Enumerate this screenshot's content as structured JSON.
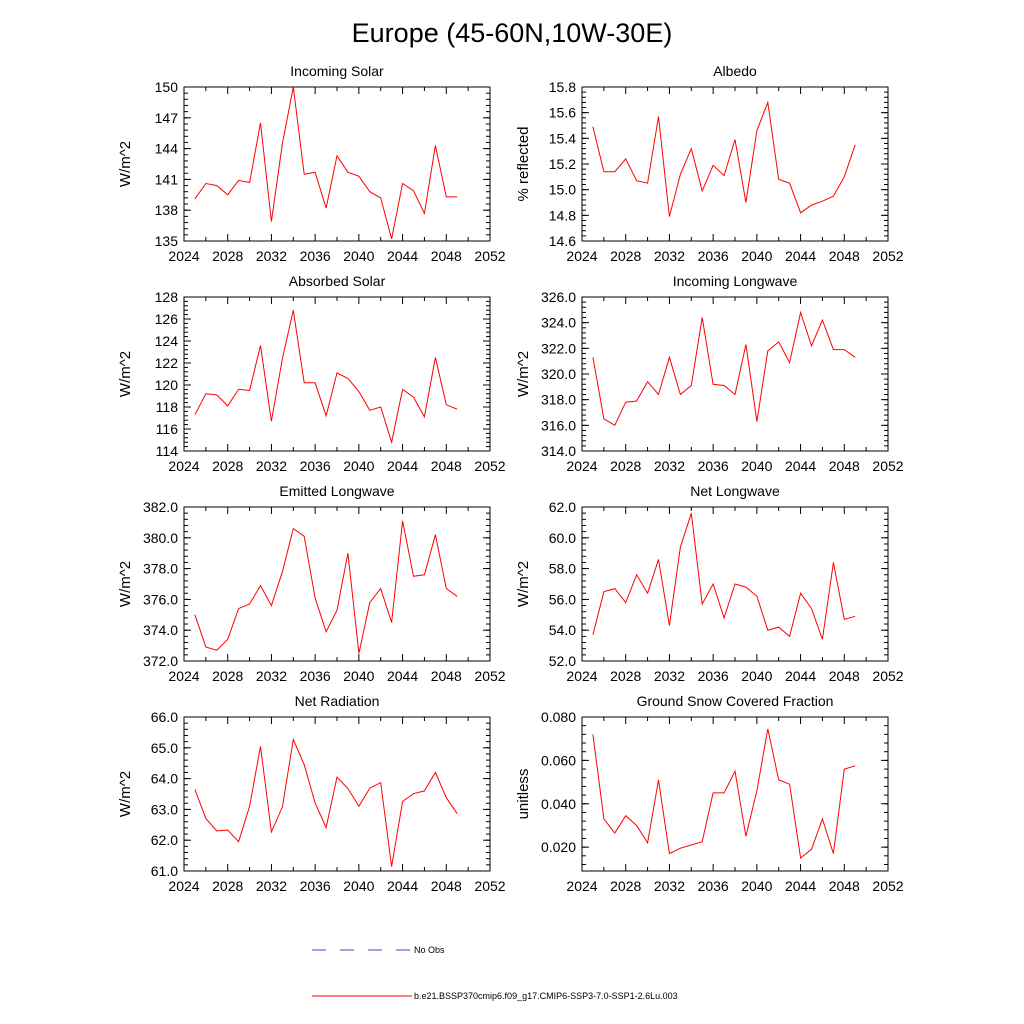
{
  "figure": {
    "title": "Europe (45-60N,10W-30E)",
    "legend": [
      {
        "label": "No Obs",
        "color": "#3b45d6",
        "style": "dashed"
      },
      {
        "label": "b.e21.BSSP370cmip6.f09_g17.CMIP6-SSP3-7.0-SSP1-2.6Lu.003",
        "color": "#ff0000",
        "style": "solid"
      }
    ]
  },
  "chart_data": [
    {
      "type": "line",
      "title": "Incoming Solar",
      "ylabel": "W/m^2",
      "xlim": [
        2024,
        2052
      ],
      "ylim": [
        135,
        150
      ],
      "xticks": [
        2024,
        2028,
        2032,
        2036,
        2040,
        2044,
        2048,
        2052
      ],
      "xtick_labels": [
        "2024",
        "2028",
        "2032",
        "2036",
        "2040",
        "2044",
        "2048",
        "2052"
      ],
      "yticks": [
        135,
        138,
        141,
        144,
        147,
        150
      ],
      "ytick_labels": [
        "135",
        "138",
        "141",
        "144",
        "147",
        "150"
      ],
      "x": [
        2025,
        2026,
        2027,
        2028,
        2029,
        2030,
        2031,
        2032,
        2033,
        2034,
        2035,
        2036,
        2037,
        2038,
        2039,
        2040,
        2041,
        2042,
        2043,
        2044,
        2045,
        2046,
        2047,
        2048,
        2049
      ],
      "values": [
        139.1,
        140.6,
        140.4,
        139.5,
        140.9,
        140.7,
        146.5,
        136.9,
        144.5,
        150.0,
        141.5,
        141.7,
        138.2,
        143.3,
        141.7,
        141.3,
        139.8,
        139.2,
        135.2,
        140.6,
        139.9,
        137.7,
        144.3,
        139.3,
        139.3
      ]
    },
    {
      "type": "line",
      "title": "Albedo",
      "ylabel": "% reflected",
      "xlim": [
        2024,
        2052
      ],
      "ylim": [
        14.6,
        15.8
      ],
      "xticks": [
        2024,
        2028,
        2032,
        2036,
        2040,
        2044,
        2048,
        2052
      ],
      "xtick_labels": [
        "2024",
        "2028",
        "2032",
        "2036",
        "2040",
        "2044",
        "2048",
        "2052"
      ],
      "yticks": [
        14.6,
        14.8,
        15.0,
        15.2,
        15.4,
        15.6,
        15.8
      ],
      "ytick_labels": [
        "14.6",
        "14.8",
        "15.0",
        "15.2",
        "15.4",
        "15.6",
        "15.8"
      ],
      "x": [
        2025,
        2026,
        2027,
        2028,
        2029,
        2030,
        2031,
        2032,
        2033,
        2034,
        2035,
        2036,
        2037,
        2038,
        2039,
        2040,
        2041,
        2042,
        2043,
        2044,
        2045,
        2046,
        2047,
        2048,
        2049
      ],
      "values": [
        15.49,
        15.14,
        15.14,
        15.24,
        15.07,
        15.05,
        15.57,
        14.79,
        15.12,
        15.32,
        14.99,
        15.19,
        15.11,
        15.39,
        14.9,
        15.46,
        15.68,
        15.08,
        15.05,
        14.82,
        14.88,
        14.91,
        14.95,
        15.1,
        15.35
      ]
    },
    {
      "type": "line",
      "title": "Absorbed Solar",
      "ylabel": "W/m^2",
      "xlim": [
        2024,
        2052
      ],
      "ylim": [
        114,
        128
      ],
      "xticks": [
        2024,
        2028,
        2032,
        2036,
        2040,
        2044,
        2048,
        2052
      ],
      "xtick_labels": [
        "2024",
        "2028",
        "2032",
        "2036",
        "2040",
        "2044",
        "2048",
        "2052"
      ],
      "yticks": [
        114,
        116,
        118,
        120,
        122,
        124,
        126,
        128
      ],
      "ytick_labels": [
        "114",
        "116",
        "118",
        "120",
        "122",
        "124",
        "126",
        "128"
      ],
      "x": [
        2025,
        2026,
        2027,
        2028,
        2029,
        2030,
        2031,
        2032,
        2033,
        2034,
        2035,
        2036,
        2037,
        2038,
        2039,
        2040,
        2041,
        2042,
        2043,
        2044,
        2045,
        2046,
        2047,
        2048,
        2049
      ],
      "values": [
        117.3,
        119.2,
        119.1,
        118.1,
        119.6,
        119.5,
        123.6,
        116.7,
        122.4,
        126.8,
        120.2,
        120.2,
        117.2,
        121.1,
        120.6,
        119.4,
        117.7,
        118.0,
        114.8,
        119.6,
        118.9,
        117.1,
        122.5,
        118.2,
        117.8
      ]
    },
    {
      "type": "line",
      "title": "Incoming Longwave",
      "ylabel": "W/m^2",
      "xlim": [
        2024,
        2052
      ],
      "ylim": [
        314,
        326
      ],
      "xticks": [
        2024,
        2028,
        2032,
        2036,
        2040,
        2044,
        2048,
        2052
      ],
      "xtick_labels": [
        "2024",
        "2028",
        "2032",
        "2036",
        "2040",
        "2044",
        "2048",
        "2052"
      ],
      "yticks": [
        314,
        316,
        318,
        320,
        322,
        324,
        326
      ],
      "ytick_labels": [
        "314.0",
        "316.0",
        "318.0",
        "320.0",
        "322.0",
        "324.0",
        "326.0"
      ],
      "x": [
        2025,
        2026,
        2027,
        2028,
        2029,
        2030,
        2031,
        2032,
        2033,
        2034,
        2035,
        2036,
        2037,
        2038,
        2039,
        2040,
        2041,
        2042,
        2043,
        2044,
        2045,
        2046,
        2047,
        2048,
        2049
      ],
      "values": [
        321.3,
        316.5,
        316.0,
        317.8,
        317.9,
        319.4,
        318.4,
        321.3,
        318.4,
        319.1,
        324.4,
        319.2,
        319.1,
        318.4,
        322.3,
        316.3,
        321.8,
        322.5,
        320.9,
        324.8,
        322.2,
        324.2,
        321.9,
        321.9,
        321.3
      ]
    },
    {
      "type": "line",
      "title": "Emitted Longwave",
      "ylabel": "W/m^2",
      "xlim": [
        2024,
        2052
      ],
      "ylim": [
        372,
        382
      ],
      "xticks": [
        2024,
        2028,
        2032,
        2036,
        2040,
        2044,
        2048,
        2052
      ],
      "xtick_labels": [
        "2024",
        "2028",
        "2032",
        "2036",
        "2040",
        "2044",
        "2048",
        "2052"
      ],
      "yticks": [
        372,
        374,
        376,
        378,
        380,
        382
      ],
      "ytick_labels": [
        "372.0",
        "374.0",
        "376.0",
        "378.0",
        "380.0",
        "382.0"
      ],
      "x": [
        2025,
        2026,
        2027,
        2028,
        2029,
        2030,
        2031,
        2032,
        2033,
        2034,
        2035,
        2036,
        2037,
        2038,
        2039,
        2040,
        2041,
        2042,
        2043,
        2044,
        2045,
        2046,
        2047,
        2048,
        2049
      ],
      "values": [
        375.0,
        372.9,
        372.7,
        373.4,
        375.4,
        375.7,
        376.9,
        375.6,
        377.8,
        380.6,
        380.1,
        376.1,
        373.9,
        375.3,
        379.0,
        372.5,
        375.8,
        376.7,
        374.5,
        381.1,
        377.5,
        377.6,
        380.2,
        376.7,
        376.2
      ]
    },
    {
      "type": "line",
      "title": "Net Longwave",
      "ylabel": "W/m^2",
      "xlim": [
        2024,
        2052
      ],
      "ylim": [
        52,
        62
      ],
      "xticks": [
        2024,
        2028,
        2032,
        2036,
        2040,
        2044,
        2048,
        2052
      ],
      "xtick_labels": [
        "2024",
        "2028",
        "2032",
        "2036",
        "2040",
        "2044",
        "2048",
        "2052"
      ],
      "yticks": [
        52,
        54,
        56,
        58,
        60,
        62
      ],
      "ytick_labels": [
        "52.0",
        "54.0",
        "56.0",
        "58.0",
        "60.0",
        "62.0"
      ],
      "x": [
        2025,
        2026,
        2027,
        2028,
        2029,
        2030,
        2031,
        2032,
        2033,
        2034,
        2035,
        2036,
        2037,
        2038,
        2039,
        2040,
        2041,
        2042,
        2043,
        2044,
        2045,
        2046,
        2047,
        2048,
        2049
      ],
      "values": [
        53.7,
        56.5,
        56.7,
        55.8,
        57.6,
        56.4,
        58.6,
        54.3,
        59.4,
        61.6,
        55.7,
        57.0,
        54.8,
        57.0,
        56.8,
        56.2,
        54.0,
        54.2,
        53.6,
        56.4,
        55.4,
        53.4,
        58.4,
        54.7,
        54.9
      ]
    },
    {
      "type": "line",
      "title": "Net Radiation",
      "ylabel": "W/m^2",
      "xlim": [
        2024,
        2052
      ],
      "ylim": [
        61,
        66
      ],
      "xticks": [
        2024,
        2028,
        2032,
        2036,
        2040,
        2044,
        2048,
        2052
      ],
      "xtick_labels": [
        "2024",
        "2028",
        "2032",
        "2036",
        "2040",
        "2044",
        "2048",
        "2052"
      ],
      "yticks": [
        61,
        62,
        63,
        64,
        65,
        66
      ],
      "ytick_labels": [
        "61.0",
        "62.0",
        "63.0",
        "64.0",
        "65.0",
        "66.0"
      ],
      "x": [
        2025,
        2026,
        2027,
        2028,
        2029,
        2030,
        2031,
        2032,
        2033,
        2034,
        2035,
        2036,
        2037,
        2038,
        2039,
        2040,
        2041,
        2042,
        2043,
        2044,
        2045,
        2046,
        2047,
        2048,
        2049
      ],
      "values": [
        63.65,
        62.7,
        62.3,
        62.33,
        61.95,
        63.1,
        65.05,
        62.27,
        63.08,
        65.27,
        64.45,
        63.21,
        62.41,
        64.05,
        63.68,
        63.1,
        63.69,
        63.87,
        61.14,
        63.26,
        63.51,
        63.6,
        64.2,
        63.38,
        62.86
      ]
    },
    {
      "type": "line",
      "title": "Ground Snow Covered Fraction",
      "ylabel": "unitless",
      "xlim": [
        2024,
        2052
      ],
      "ylim": [
        0.009,
        0.08
      ],
      "xticks": [
        2024,
        2028,
        2032,
        2036,
        2040,
        2044,
        2048,
        2052
      ],
      "xtick_labels": [
        "2024",
        "2028",
        "2032",
        "2036",
        "2040",
        "2044",
        "2048",
        "2052"
      ],
      "yticks": [
        0.02,
        0.04,
        0.06,
        0.08
      ],
      "ytick_labels": [
        "0.020",
        "0.040",
        "0.060",
        "0.080"
      ],
      "x": [
        2025,
        2026,
        2027,
        2028,
        2029,
        2030,
        2031,
        2032,
        2033,
        2034,
        2035,
        2036,
        2037,
        2038,
        2039,
        2040,
        2041,
        2042,
        2043,
        2044,
        2045,
        2046,
        2047,
        2048,
        2049
      ],
      "values": [
        0.072,
        0.033,
        0.0265,
        0.0345,
        0.03,
        0.022,
        0.051,
        0.017,
        0.0195,
        0.021,
        0.0225,
        0.045,
        0.045,
        0.055,
        0.025,
        0.046,
        0.0745,
        0.051,
        0.049,
        0.015,
        0.019,
        0.033,
        0.017,
        0.056,
        0.0575
      ]
    }
  ]
}
